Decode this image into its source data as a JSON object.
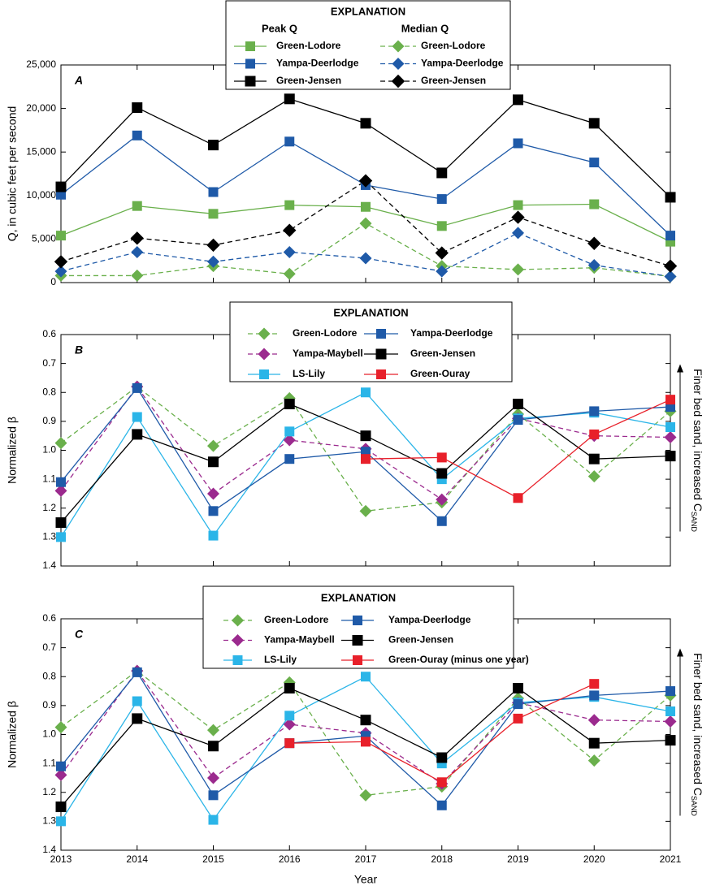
{
  "chart_data": [
    {
      "type": "line",
      "panel": "A",
      "ylabel": "Q, in cubic feet per second",
      "legend_title": "EXPLANATION",
      "legend_headers": [
        "Peak Q",
        "Median Q"
      ],
      "x": [
        2013,
        2014,
        2015,
        2016,
        2017,
        2018,
        2019,
        2020,
        2021
      ],
      "xlim": [
        2013,
        2021
      ],
      "ylim": [
        0,
        25000
      ],
      "yticks": [
        0,
        {
          "value": 5000,
          "label": "5,000"
        },
        {
          "value": 10000,
          "label": "10,000"
        },
        {
          "value": 15000,
          "label": "15,000"
        },
        {
          "value": 20000,
          "label": "20,000"
        },
        {
          "value": 25000,
          "label": "25,000"
        }
      ],
      "series": [
        {
          "name": "Green-Lodore",
          "color": "#6ab04c",
          "marker": "square",
          "dashed": false,
          "values": [
            5400,
            8800,
            7900,
            8900,
            8700,
            6500,
            8900,
            9000,
            4700
          ]
        },
        {
          "name": "Yampa-Deerlodge",
          "color": "#1f5aa8",
          "marker": "square",
          "dashed": false,
          "values": [
            10100,
            16900,
            10400,
            16200,
            11200,
            9600,
            16000,
            13800,
            5400
          ]
        },
        {
          "name": "Green-Jensen",
          "color": "#000000",
          "marker": "square",
          "dashed": false,
          "values": [
            11000,
            20100,
            15800,
            21100,
            18300,
            12600,
            21000,
            18300,
            9800
          ]
        },
        {
          "name": "Green-Lodore",
          "color": "#6ab04c",
          "marker": "diamond",
          "dashed": true,
          "values": [
            800,
            800,
            1900,
            1000,
            6800,
            1900,
            1500,
            1700,
            700
          ]
        },
        {
          "name": "Yampa-Deerlodge",
          "color": "#1f5aa8",
          "marker": "diamond",
          "dashed": true,
          "values": [
            1300,
            3500,
            2400,
            3500,
            2800,
            1300,
            5700,
            2000,
            700
          ]
        },
        {
          "name": "Green-Jensen",
          "color": "#000000",
          "marker": "diamond",
          "dashed": true,
          "values": [
            2400,
            5100,
            4300,
            6000,
            11700,
            3400,
            7500,
            4500,
            1900
          ]
        }
      ]
    },
    {
      "type": "line",
      "panel": "B",
      "ylabel": "Normalized β",
      "legend_title": "EXPLANATION",
      "annotation": "Finer bed sand, increased C",
      "annotation_subscript": "SAND",
      "x": [
        2013,
        2014,
        2015,
        2016,
        2017,
        2018,
        2019,
        2020,
        2021
      ],
      "xlim": [
        2013,
        2021
      ],
      "ylim": [
        0.6,
        1.4
      ],
      "y_inverted": true,
      "yticks": [
        0.6,
        0.7,
        0.8,
        0.9,
        {
          "value": 1,
          "label": "1.0"
        },
        1.1,
        1.2,
        1.3,
        1.4
      ],
      "series": [
        {
          "name": "Green-Lodore",
          "color": "#6ab04c",
          "marker": "diamond",
          "dashed": true,
          "values": [
            0.975,
            0.78,
            0.985,
            0.82,
            1.21,
            1.18,
            0.875,
            1.09,
            0.865
          ]
        },
        {
          "name": "Yampa-Maybell",
          "color": "#9b2a8e",
          "marker": "diamond",
          "dashed": true,
          "values": [
            1.14,
            0.78,
            1.15,
            0.965,
            0.995,
            1.17,
            0.89,
            0.95,
            0.955
          ]
        },
        {
          "name": "LS-Lily",
          "color": "#2bb5e8",
          "marker": "square",
          "dashed": false,
          "values": [
            1.3,
            0.885,
            1.295,
            0.935,
            0.8,
            1.1,
            0.89,
            0.87,
            0.92
          ]
        },
        {
          "name": "Yampa-Deerlodge",
          "color": "#1f5aa8",
          "marker": "square",
          "dashed": false,
          "values": [
            1.11,
            0.785,
            1.21,
            1.03,
            1.005,
            1.245,
            0.895,
            0.865,
            0.85
          ]
        },
        {
          "name": "Green-Jensen",
          "color": "#000000",
          "marker": "square",
          "dashed": false,
          "values": [
            1.25,
            0.945,
            1.04,
            0.84,
            0.95,
            1.08,
            0.84,
            1.03,
            1.02
          ]
        },
        {
          "name": "Green-Ouray",
          "color": "#e8202a",
          "marker": "square",
          "dashed": false,
          "values": [
            null,
            null,
            null,
            null,
            1.03,
            1.025,
            1.165,
            0.945,
            0.825
          ]
        }
      ]
    },
    {
      "type": "line",
      "panel": "C",
      "ylabel": "Normalized β",
      "legend_title": "EXPLANATION",
      "xlabel": "Year",
      "annotation": "Finer bed sand, increased C",
      "annotation_subscript": "SAND",
      "x": [
        2013,
        2014,
        2015,
        2016,
        2017,
        2018,
        2019,
        2020,
        2021
      ],
      "xlim": [
        2013,
        2021
      ],
      "xticks": [
        2013,
        2014,
        2015,
        2016,
        2017,
        2018,
        2019,
        2020,
        2021
      ],
      "ylim": [
        0.6,
        1.4
      ],
      "y_inverted": true,
      "yticks": [
        0.6,
        0.7,
        0.8,
        0.9,
        {
          "value": 1,
          "label": "1.0"
        },
        1.1,
        1.2,
        1.3,
        1.4
      ],
      "series": [
        {
          "name": "Green-Lodore",
          "color": "#6ab04c",
          "marker": "diamond",
          "dashed": true,
          "values": [
            0.975,
            0.78,
            0.985,
            0.82,
            1.21,
            1.18,
            0.875,
            1.09,
            0.865
          ]
        },
        {
          "name": "Yampa-Maybell",
          "color": "#9b2a8e",
          "marker": "diamond",
          "dashed": true,
          "values": [
            1.14,
            0.78,
            1.15,
            0.965,
            0.995,
            1.17,
            0.89,
            0.95,
            0.955
          ]
        },
        {
          "name": "LS-Lily",
          "color": "#2bb5e8",
          "marker": "square",
          "dashed": false,
          "values": [
            1.3,
            0.885,
            1.295,
            0.935,
            0.8,
            1.1,
            0.89,
            0.87,
            0.92
          ]
        },
        {
          "name": "Yampa-Deerlodge",
          "color": "#1f5aa8",
          "marker": "square",
          "dashed": false,
          "values": [
            1.11,
            0.785,
            1.21,
            1.03,
            1.005,
            1.245,
            0.895,
            0.865,
            0.85
          ]
        },
        {
          "name": "Green-Jensen",
          "color": "#000000",
          "marker": "square",
          "dashed": false,
          "values": [
            1.25,
            0.945,
            1.04,
            0.84,
            0.95,
            1.08,
            0.84,
            1.03,
            1.02
          ]
        },
        {
          "name": "Green-Ouray (minus one year)",
          "color": "#e8202a",
          "marker": "square",
          "dashed": false,
          "values": [
            null,
            null,
            null,
            1.03,
            1.025,
            1.165,
            0.945,
            0.825,
            null
          ]
        }
      ]
    }
  ]
}
